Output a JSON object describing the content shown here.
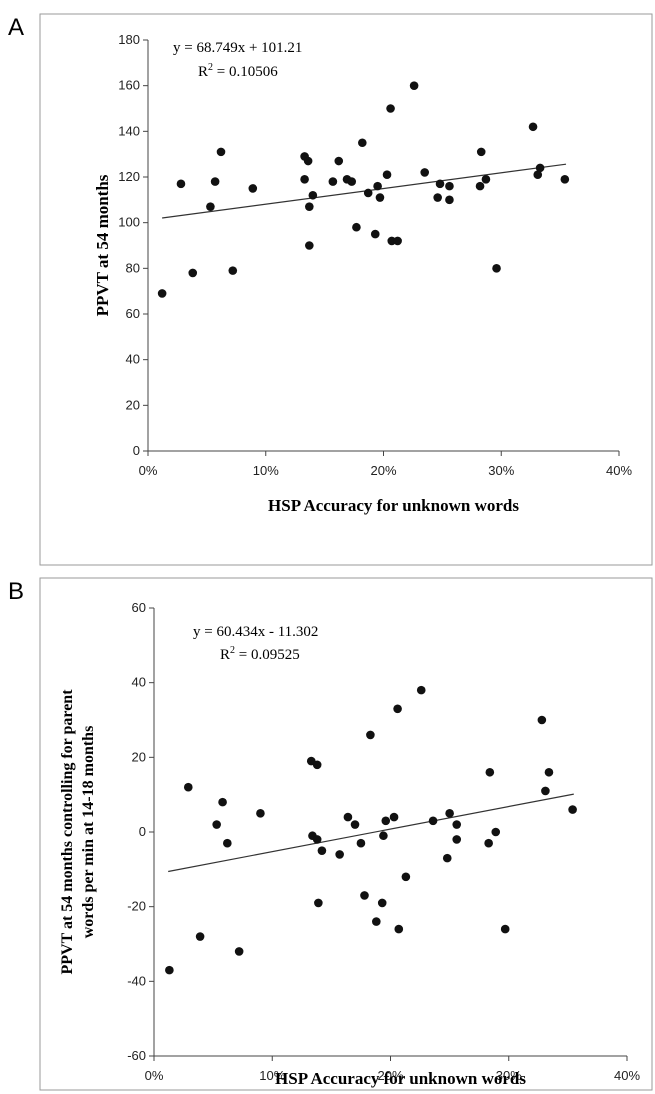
{
  "panels": [
    {
      "letter": "A"
    },
    {
      "letter": "B"
    }
  ],
  "chart_data": [
    {
      "type": "scatter",
      "title": "",
      "xlabel": "HSP Accuracy for unknown words",
      "ylabel": "PPVT at 54 months",
      "xlim": [
        0,
        0.4
      ],
      "ylim": [
        0,
        180
      ],
      "x_ticks": [
        "0%",
        "10%",
        "20%",
        "30%",
        "40%"
      ],
      "y_ticks": [
        "0",
        "20",
        "40",
        "60",
        "80",
        "100",
        "120",
        "140",
        "160",
        "180"
      ],
      "trendline": {
        "slope": 68.749,
        "intercept": 101.21,
        "x_range": [
          0.012,
          0.355
        ]
      },
      "equation": "y = 68.749x + 101.21",
      "r2_prefix": "R",
      "r2_value": " = 0.10506",
      "grid": false,
      "points": [
        [
          0.012,
          69
        ],
        [
          0.028,
          117
        ],
        [
          0.038,
          78
        ],
        [
          0.053,
          107
        ],
        [
          0.057,
          118
        ],
        [
          0.062,
          131
        ],
        [
          0.072,
          79
        ],
        [
          0.089,
          115
        ],
        [
          0.133,
          129
        ],
        [
          0.133,
          119
        ],
        [
          0.136,
          127
        ],
        [
          0.137,
          107
        ],
        [
          0.137,
          90
        ],
        [
          0.14,
          112
        ],
        [
          0.157,
          118
        ],
        [
          0.162,
          127
        ],
        [
          0.169,
          119
        ],
        [
          0.173,
          118
        ],
        [
          0.177,
          98
        ],
        [
          0.182,
          135
        ],
        [
          0.187,
          113
        ],
        [
          0.193,
          95
        ],
        [
          0.195,
          116
        ],
        [
          0.197,
          111
        ],
        [
          0.203,
          121
        ],
        [
          0.206,
          150
        ],
        [
          0.207,
          92
        ],
        [
          0.212,
          92
        ],
        [
          0.226,
          160
        ],
        [
          0.235,
          122
        ],
        [
          0.246,
          111
        ],
        [
          0.248,
          117
        ],
        [
          0.256,
          110
        ],
        [
          0.256,
          116
        ],
        [
          0.282,
          116
        ],
        [
          0.283,
          131
        ],
        [
          0.287,
          119
        ],
        [
          0.296,
          80
        ],
        [
          0.327,
          142
        ],
        [
          0.331,
          121
        ],
        [
          0.333,
          124
        ],
        [
          0.354,
          119
        ]
      ]
    },
    {
      "type": "scatter",
      "title": "",
      "xlabel": "HSP Accuracy for unknown words",
      "ylabel": "PPVT at 54 months controlling for parent words per min at 14-18 months",
      "ylabel_lines": [
        "PPVT at 54 months controlling for parent",
        "words per min at 14-18 months"
      ],
      "xlim": [
        0,
        0.4
      ],
      "ylim": [
        -60,
        60
      ],
      "x_ticks": [
        "0%",
        "10%",
        "20%",
        "30%",
        "40%"
      ],
      "y_ticks": [
        "-60",
        "-40",
        "-20",
        "0",
        "20",
        "40",
        "60"
      ],
      "trendline": {
        "slope": 60.434,
        "intercept": -11.302,
        "x_range": [
          0.012,
          0.355
        ]
      },
      "equation": "y = 60.434x - 11.302",
      "r2_prefix": "R",
      "r2_value": " = 0.09525",
      "grid": false,
      "points": [
        [
          0.013,
          -37
        ],
        [
          0.029,
          12
        ],
        [
          0.039,
          -28
        ],
        [
          0.053,
          2
        ],
        [
          0.058,
          8
        ],
        [
          0.062,
          -3
        ],
        [
          0.072,
          -32
        ],
        [
          0.09,
          5
        ],
        [
          0.133,
          19
        ],
        [
          0.134,
          -1
        ],
        [
          0.138,
          18
        ],
        [
          0.138,
          -2
        ],
        [
          0.139,
          -19
        ],
        [
          0.142,
          -5
        ],
        [
          0.157,
          -6
        ],
        [
          0.164,
          4
        ],
        [
          0.17,
          2
        ],
        [
          0.175,
          -3
        ],
        [
          0.178,
          -17
        ],
        [
          0.183,
          26
        ],
        [
          0.188,
          -24
        ],
        [
          0.193,
          -19
        ],
        [
          0.194,
          -1
        ],
        [
          0.196,
          3
        ],
        [
          0.203,
          4
        ],
        [
          0.206,
          33
        ],
        [
          0.207,
          -26
        ],
        [
          0.213,
          -12
        ],
        [
          0.226,
          38
        ],
        [
          0.236,
          3
        ],
        [
          0.248,
          -7
        ],
        [
          0.25,
          5
        ],
        [
          0.256,
          2
        ],
        [
          0.256,
          -2
        ],
        [
          0.283,
          -3
        ],
        [
          0.284,
          16
        ],
        [
          0.289,
          0
        ],
        [
          0.297,
          -26
        ],
        [
          0.328,
          30
        ],
        [
          0.331,
          11
        ],
        [
          0.334,
          16
        ],
        [
          0.354,
          6
        ]
      ]
    }
  ]
}
